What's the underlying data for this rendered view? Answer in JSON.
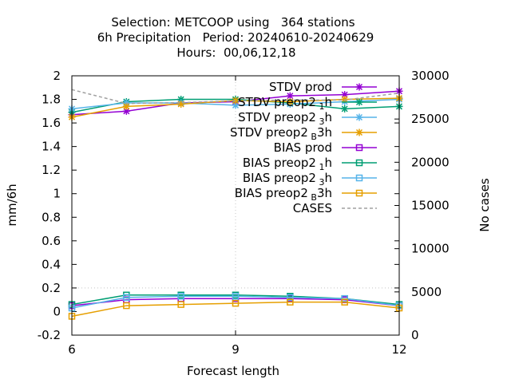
{
  "chart_data": {
    "type": "line",
    "title": [
      "Selection: METCOOP using   364 stations",
      "6h Precipitation   Period: 20240610-20240629",
      "Hours:  00,06,12,18"
    ],
    "xlabel": "Forecast length",
    "ylabel": "mm/6h",
    "y2label": "No cases",
    "xlim": [
      6,
      12
    ],
    "ylim": [
      -0.2,
      2
    ],
    "y2lim": [
      0,
      30000
    ],
    "xticks": [
      6,
      9,
      12
    ],
    "yticks": [
      "-0.2",
      "0",
      "0.2",
      "0.4",
      "0.6",
      "0.8",
      "1",
      "1.2",
      "1.4",
      "1.6",
      "1.8",
      "2"
    ],
    "y2ticks": [
      "0",
      "5000",
      "10000",
      "15000",
      "20000",
      "25000",
      "30000"
    ],
    "grid": true,
    "legend_position": "top-right",
    "x": [
      6,
      7,
      8,
      9,
      10,
      11,
      12
    ],
    "series": [
      {
        "name": "STDV prod",
        "axis": "y1",
        "color": "#9400d3",
        "marker": "x",
        "values": [
          1.67,
          1.7,
          1.77,
          1.78,
          1.83,
          1.84,
          1.87
        ]
      },
      {
        "name": "STDV preop2_1h",
        "axis": "y1",
        "color": "#009e73",
        "marker": "x",
        "values": [
          1.69,
          1.78,
          1.8,
          1.8,
          1.77,
          1.72,
          1.74
        ]
      },
      {
        "name": "STDV preop2_3h",
        "axis": "y1",
        "color": "#56b4e9",
        "marker": "x",
        "values": [
          1.72,
          1.77,
          1.77,
          1.75,
          1.76,
          1.78,
          1.8
        ]
      },
      {
        "name": "STDV preop2_B3h",
        "axis": "y1",
        "color": "#e69f00",
        "marker": "x",
        "values": [
          1.65,
          1.74,
          1.76,
          1.79,
          1.78,
          1.8,
          1.81
        ]
      },
      {
        "name": "BIAS prod",
        "axis": "y1",
        "color": "#9400d3",
        "marker": "square",
        "values": [
          0.05,
          0.1,
          0.11,
          0.11,
          0.11,
          0.1,
          0.05
        ]
      },
      {
        "name": "BIAS preop2_1h",
        "axis": "y1",
        "color": "#009e73",
        "marker": "square",
        "values": [
          0.06,
          0.14,
          0.14,
          0.14,
          0.13,
          0.11,
          0.06
        ]
      },
      {
        "name": "BIAS preop2_3h",
        "axis": "y1",
        "color": "#56b4e9",
        "marker": "square",
        "values": [
          0.03,
          0.12,
          0.13,
          0.13,
          0.12,
          0.11,
          0.05
        ]
      },
      {
        "name": "BIAS preop2_B3h",
        "axis": "y1",
        "color": "#e69f00",
        "marker": "square",
        "values": [
          -0.04,
          0.05,
          0.06,
          0.07,
          0.08,
          0.08,
          0.03
        ]
      },
      {
        "name": "CASES",
        "axis": "y2",
        "color": "#a0a0a0",
        "marker": "none",
        "dashed": true,
        "values": [
          28400,
          26800,
          26900,
          27100,
          27200,
          27200,
          28000
        ]
      }
    ]
  }
}
